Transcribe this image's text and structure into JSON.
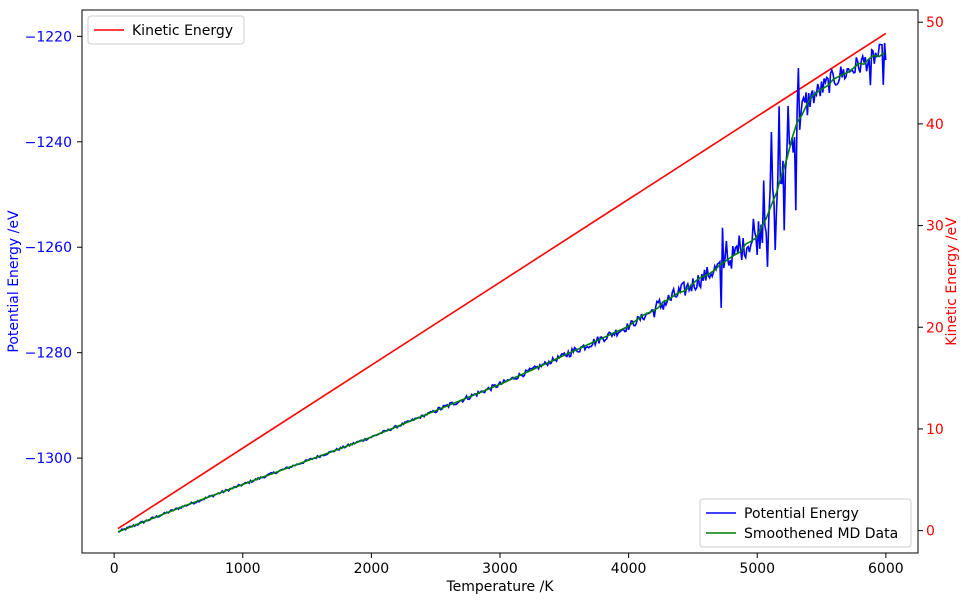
{
  "chart_data": {
    "type": "line",
    "x_axis": {
      "label": "Temperature /K",
      "ticks": [
        0,
        1000,
        2000,
        3000,
        4000,
        5000,
        6000
      ],
      "range": [
        -250,
        6250
      ]
    },
    "y_left_axis": {
      "label": "Potential Energy /eV",
      "ticks": [
        -1300,
        -1280,
        -1260,
        -1240,
        -1220
      ],
      "range": [
        -1318,
        -1215
      ],
      "color": "#0000ff"
    },
    "y_right_axis": {
      "label": "Kinetic Energy /eV",
      "ticks": [
        0,
        10,
        20,
        30,
        40,
        50
      ],
      "range": [
        -2.2,
        51.2
      ],
      "color": "#ff0000"
    },
    "legends": {
      "top_left": [
        "Kinetic Energy"
      ],
      "bottom_right": [
        "Potential Energy",
        "Smoothened MD Data"
      ]
    },
    "series": [
      {
        "name": "Kinetic Energy",
        "axis": "right",
        "color": "#ff0000",
        "x": [
          30,
          6000
        ],
        "y": [
          0.2,
          48.9
        ]
      },
      {
        "name": "Potential Energy",
        "axis": "left",
        "color": "#0000ff",
        "noisy": true,
        "x": [
          30,
          500,
          1000,
          1500,
          2000,
          2500,
          3000,
          3500,
          4000,
          4250,
          4500,
          4750,
          5000,
          5150,
          5300,
          5400,
          5500,
          5600,
          5750,
          5900,
          6000
        ],
        "y": [
          -1314,
          -1309.5,
          -1305,
          -1300.5,
          -1296,
          -1291,
          -1286,
          -1280.5,
          -1275,
          -1271,
          -1267,
          -1263,
          -1258,
          -1250,
          -1237,
          -1232,
          -1230,
          -1228,
          -1226,
          -1224,
          -1223
        ]
      },
      {
        "name": "Smoothened MD Data",
        "axis": "left",
        "color": "#008000",
        "x": [
          30,
          500,
          1000,
          1500,
          2000,
          2500,
          3000,
          3500,
          4000,
          4250,
          4500,
          4750,
          5000,
          5150,
          5300,
          5400,
          5500,
          5600,
          5750,
          5900,
          6000
        ],
        "y": [
          -1314,
          -1309.5,
          -1305,
          -1300.5,
          -1296,
          -1291,
          -1286,
          -1280.5,
          -1275,
          -1271,
          -1267,
          -1263,
          -1258,
          -1250,
          -1237,
          -1232,
          -1230,
          -1228,
          -1226,
          -1224,
          -1223
        ]
      }
    ]
  }
}
